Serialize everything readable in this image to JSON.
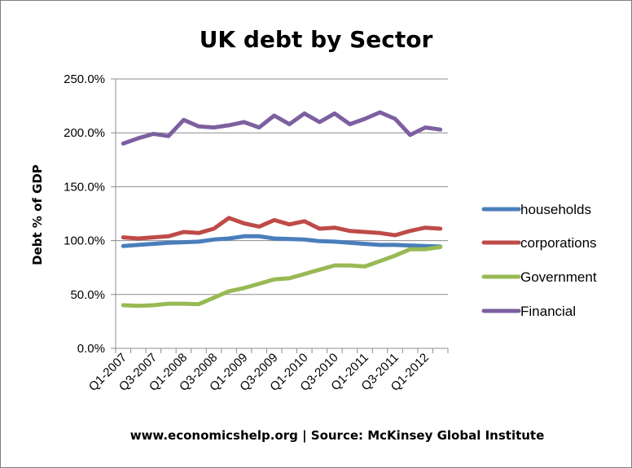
{
  "chart_data": {
    "type": "line",
    "title": "UK debt by Sector",
    "ylabel": "Debt % of GDP",
    "xlabel": "",
    "ylim": [
      0,
      250
    ],
    "yticks": [
      "0.0%",
      "50.0%",
      "100.0%",
      "150.0%",
      "200.0%",
      "250.0%"
    ],
    "ytick_values": [
      0,
      50,
      100,
      150,
      200,
      250
    ],
    "grid": true,
    "legend_position": "right",
    "x": [
      "Q1-2007",
      "Q2-2007",
      "Q3-2007",
      "Q4-2007",
      "Q1-2008",
      "Q2-2008",
      "Q3-2008",
      "Q4-2008",
      "Q1-2009",
      "Q2-2009",
      "Q3-2009",
      "Q4-2009",
      "Q1-2010",
      "Q2-2010",
      "Q3-2010",
      "Q4-2010",
      "Q1-2011",
      "Q2-2011",
      "Q3-2011",
      "Q4-2011",
      "Q1-2012",
      "Q2-2012"
    ],
    "xtick_labels": [
      "Q1-2007",
      "Q3-2007",
      "Q1-2008",
      "Q3-2008",
      "Q1-2009",
      "Q3-2009",
      "Q1-2010",
      "Q3-2010",
      "Q1-2011",
      "Q3-2011",
      "Q1-2012"
    ],
    "series": [
      {
        "name": "households",
        "color": "#4a7ebb",
        "values": [
          95,
          96,
          97,
          98,
          98.5,
          99,
          101,
          102,
          104,
          104,
          102,
          101.5,
          101,
          99.5,
          99,
          98,
          97,
          96,
          96,
          95.5,
          95,
          94.5
        ]
      },
      {
        "name": "corporations",
        "color": "#be4b48",
        "values": [
          103,
          102,
          103,
          104,
          108,
          107,
          111,
          121,
          116,
          113,
          119,
          115,
          118,
          111,
          112,
          109,
          108,
          107,
          105,
          109,
          112,
          111
        ]
      },
      {
        "name": "Government",
        "color": "#98b954",
        "values": [
          40,
          39.5,
          40,
          41.5,
          41.5,
          41,
          47,
          53,
          56,
          60,
          64,
          65,
          69,
          73,
          77,
          77,
          76,
          81,
          86,
          92,
          92,
          94
        ]
      },
      {
        "name": "Financial",
        "color": "#7d60a0",
        "values": [
          190,
          195,
          199,
          197,
          212,
          206,
          205,
          207,
          210,
          205,
          216,
          208,
          218,
          210,
          218,
          208,
          213,
          219,
          213,
          198,
          205,
          203
        ]
      }
    ]
  },
  "footer": {
    "source_text": "www.economicshelp.org | Source: McKinsey Global Institute"
  }
}
